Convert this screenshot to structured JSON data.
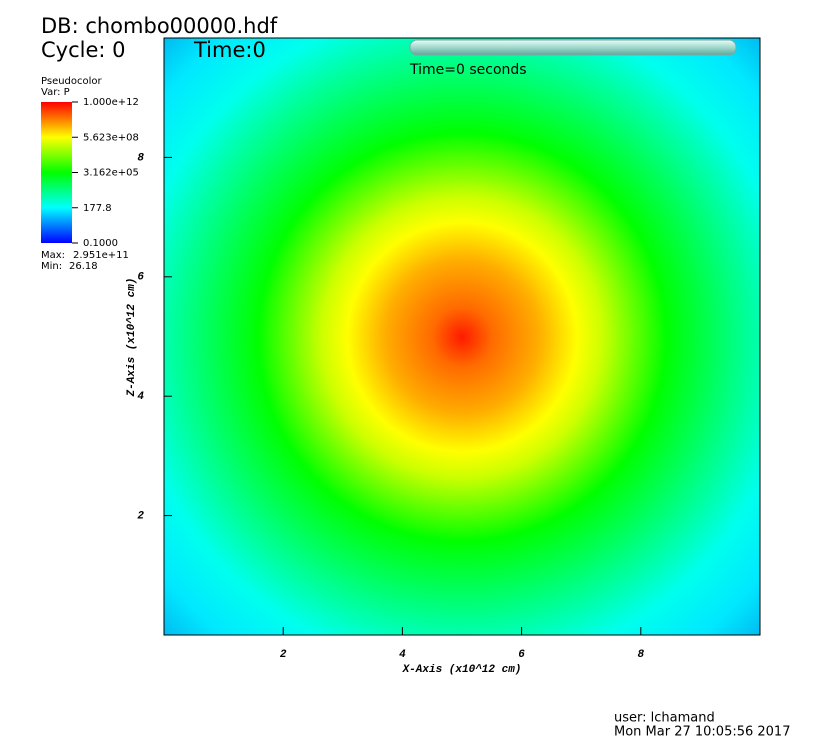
{
  "chart_data": {
    "type": "pseudocolor",
    "database": "DB: chombo00000.hdf",
    "cycle": "Cycle: 0",
    "time": "Time:0",
    "time_caption": "Time=0 seconds",
    "plot_name": "Pseudocolor",
    "variable": "Var: P",
    "xlabel": "X-Axis (x10^12 cm)",
    "ylabel": "Z-Axis (x10^12 cm)",
    "xlim": [
      0,
      10
    ],
    "ylim": [
      0,
      10
    ],
    "xticks": [
      2,
      4,
      6,
      8
    ],
    "yticks": [
      2,
      4,
      6,
      8
    ],
    "color_scale": "log",
    "clim": [
      0.1,
      1000000000000
    ],
    "colorbar_ticks": [
      {
        "value": 1000000000000,
        "label": "1.000e+12"
      },
      {
        "value": 562300000,
        "label": "5.623e+08"
      },
      {
        "value": 316200,
        "label": "3.162e+05"
      },
      177.8,
      {
        "value": 0.1,
        "label": "0.1000"
      }
    ],
    "max_label": "Max:",
    "max": {
      "value": 295100000000,
      "label": "2.951e+11"
    },
    "min_label": "Min:",
    "min": 26.18,
    "user": "user: lchamand",
    "date": "Mon Mar 27 10:05:56 2017"
  }
}
